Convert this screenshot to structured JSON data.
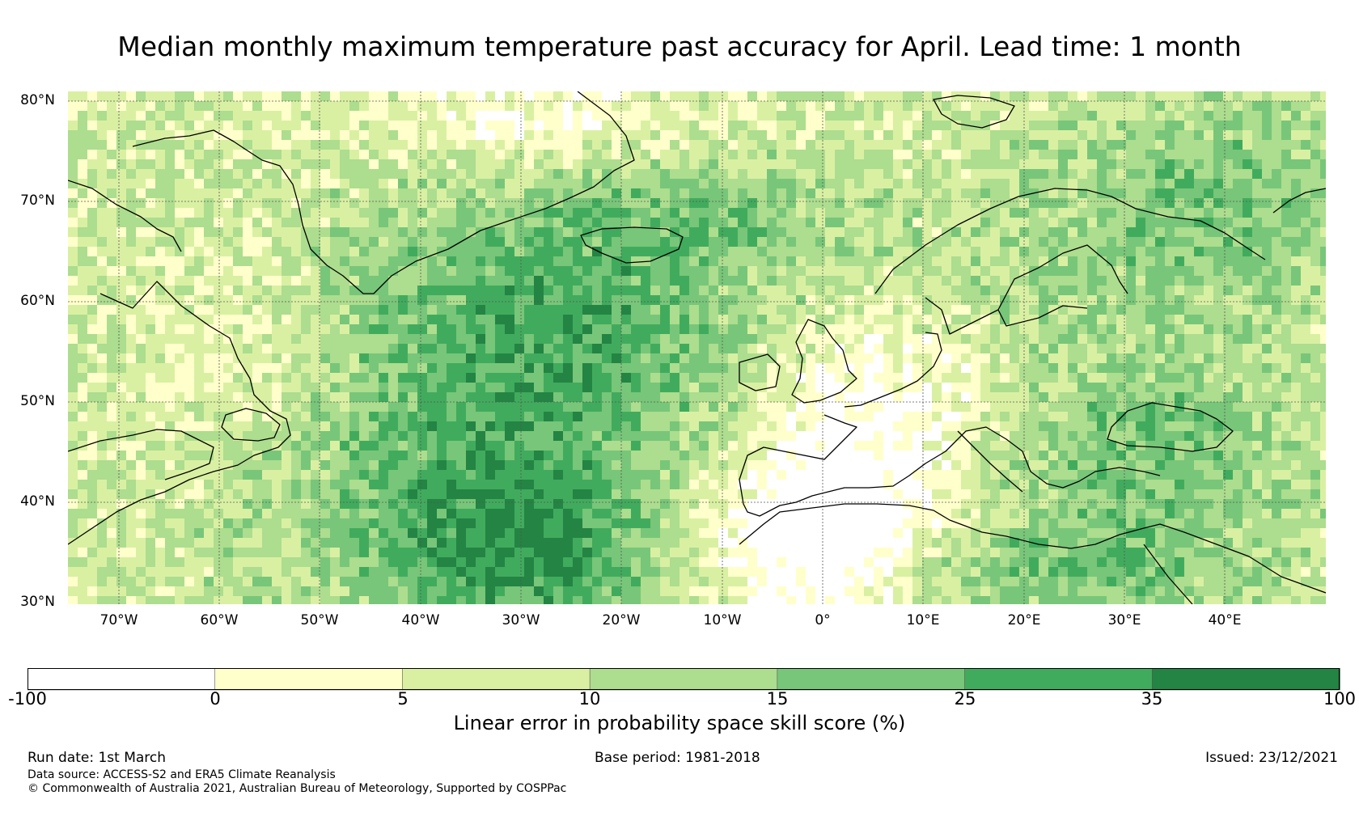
{
  "title": "Median monthly maximum temperature past accuracy for April. Lead time: 1 month",
  "map": {
    "lat_labels": [
      "80°N",
      "70°N",
      "60°N",
      "50°N",
      "40°N",
      "30°N"
    ],
    "lon_labels": [
      "70°W",
      "60°W",
      "50°W",
      "40°W",
      "30°W",
      "20°W",
      "10°W",
      "0°",
      "10°E",
      "20°E",
      "30°E",
      "40°E"
    ],
    "lat_range": [
      30,
      81
    ],
    "lon_range": [
      -75,
      50
    ],
    "gridlines": true,
    "coastlines": true
  },
  "colorbar": {
    "label": "Linear error in probability space skill score (%)",
    "ticks": [
      "-100",
      "0",
      "5",
      "10",
      "15",
      "25",
      "35",
      "100"
    ],
    "colors": [
      "#ffffff",
      "#ffffcc",
      "#d9f0a3",
      "#addd8e",
      "#78c679",
      "#41ab5d",
      "#238443"
    ]
  },
  "footer": {
    "run_date": "Run date: 1st March",
    "base_period": "Base period: 1981-2018",
    "issued": "Issued: 23/12/2021",
    "data_source": "Data source: ACCESS-S2 and ERA5 Climate Reanalysis",
    "copyright": "© Commonwealth of Australia 2021, Australian Bureau of Meteorology, Supported by COSPPac"
  }
}
